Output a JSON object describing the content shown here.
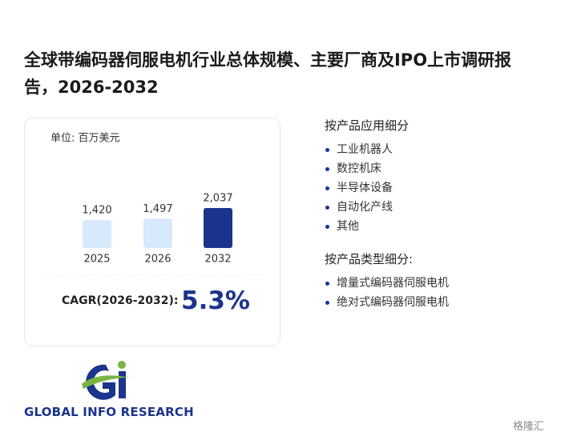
{
  "title": "全球带编码器伺服电机行业总体规模、主要厂商及IPO上市调研报告，2026-2032",
  "chart_data": {
    "type": "bar",
    "subtitle": "单位: 百万美元",
    "categories": [
      "2025",
      "2026",
      "2032"
    ],
    "values": [
      1420,
      1497,
      2037
    ],
    "value_labels": [
      "1,420",
      "1,497",
      "2,037"
    ],
    "colors": [
      "#d7e9fb",
      "#d7e9fb",
      "#1b348c"
    ]
  },
  "cagr": {
    "label": "CAGR(2026-2032):",
    "value": "5.3%"
  },
  "sections": [
    {
      "heading": "按产品应用细分",
      "items": [
        "工业机器人",
        "数控机床",
        "半导体设备",
        "自动化产线",
        "其他"
      ]
    },
    {
      "heading": "按产品类型细分:",
      "items": [
        "增量式编码器伺服电机",
        "绝对式编码器伺服电机"
      ]
    }
  ],
  "logo": "GLOBAL INFO RESEARCH",
  "watermark": "格隆汇"
}
